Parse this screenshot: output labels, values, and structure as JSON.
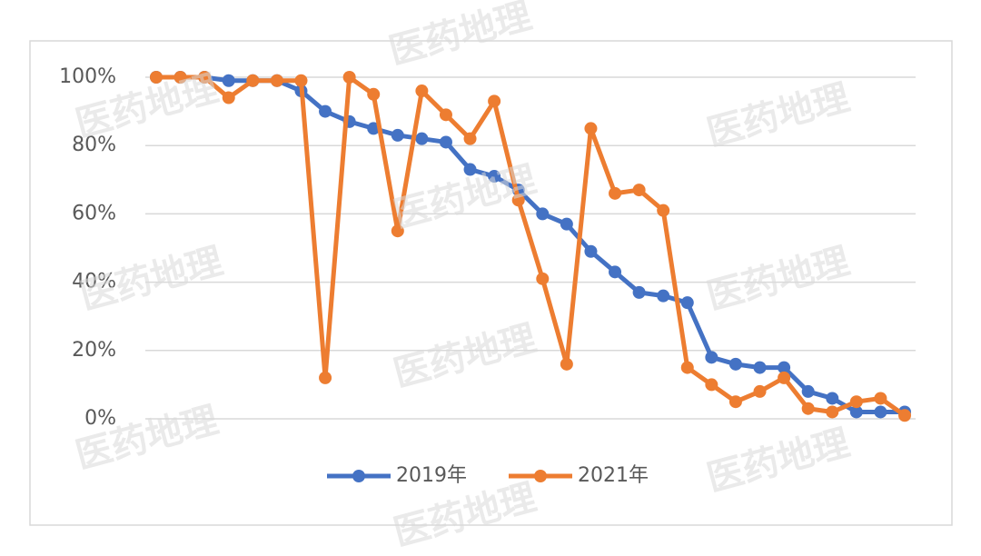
{
  "chart_data": {
    "type": "line",
    "categories": [
      null,
      null,
      null,
      null,
      null,
      null,
      null,
      null,
      null,
      null,
      null,
      null,
      null,
      null,
      null,
      null,
      null,
      null,
      null,
      null,
      null,
      null,
      null,
      null,
      null,
      null,
      null,
      null,
      null,
      null,
      null,
      null
    ],
    "series": [
      {
        "name": "2019年",
        "color": "#4472c4",
        "values": [
          100,
          100,
          100,
          99,
          99,
          99,
          96,
          90,
          87,
          85,
          83,
          82,
          81,
          73,
          71,
          67,
          60,
          57,
          49,
          43,
          37,
          36,
          34,
          18,
          16,
          15,
          15,
          8,
          6,
          2,
          2,
          2
        ]
      },
      {
        "name": "2021年",
        "color": "#ed7d31",
        "values": [
          100,
          100,
          100,
          94,
          99,
          99,
          99,
          12,
          100,
          95,
          55,
          96,
          89,
          82,
          93,
          64,
          41,
          16,
          85,
          66,
          67,
          61,
          15,
          10,
          5,
          8,
          12,
          3,
          2,
          5,
          6,
          1
        ]
      }
    ],
    "ylim": [
      0,
      100
    ],
    "yticks": [
      {
        "value": 0,
        "label": "0%"
      },
      {
        "value": 20,
        "label": "20%"
      },
      {
        "value": 40,
        "label": "40%"
      },
      {
        "value": 60,
        "label": "60%"
      },
      {
        "value": 80,
        "label": "80%"
      },
      {
        "value": 100,
        "label": "100%"
      }
    ],
    "grid": true,
    "legend": "bottom",
    "watermark": "医药地理"
  }
}
